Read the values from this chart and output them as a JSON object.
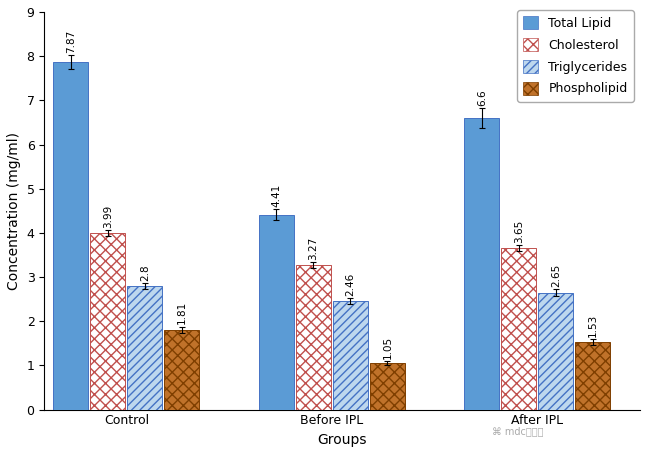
{
  "groups": [
    "Control",
    "Before IPL",
    "After IPL"
  ],
  "series": [
    {
      "label": "Total Lipid",
      "values": [
        7.87,
        4.41,
        6.6
      ],
      "errors": [
        0.15,
        0.12,
        0.22
      ],
      "color": "#5B9BD5",
      "edgecolor": "#4472C4",
      "hatch": ""
    },
    {
      "label": "Cholesterol",
      "values": [
        3.99,
        3.27,
        3.65
      ],
      "errors": [
        0.07,
        0.07,
        0.07
      ],
      "color": "#FFFFFF",
      "edgecolor": "#C0504D",
      "hatch": "xxx"
    },
    {
      "label": "Triglycerides",
      "values": [
        2.8,
        2.46,
        2.65
      ],
      "errors": [
        0.07,
        0.07,
        0.07
      ],
      "color": "#BDD7EE",
      "edgecolor": "#4472C4",
      "hatch": "////"
    },
    {
      "label": "Phospholipid",
      "values": [
        1.81,
        1.05,
        1.53
      ],
      "errors": [
        0.07,
        0.05,
        0.07
      ],
      "color": "#C0722A",
      "edgecolor": "#7F3F00",
      "hatch": "xxx"
    }
  ],
  "ylabel": "Concentration (mg/ml)",
  "xlabel": "Groups",
  "ylim": [
    0,
    9
  ],
  "yticks": [
    0,
    1,
    2,
    3,
    4,
    5,
    6,
    7,
    8,
    9
  ],
  "bar_width": 0.17,
  "background_color": "#FFFFFF",
  "value_label_fontsize": 7.5,
  "axis_label_fontsize": 10,
  "tick_fontsize": 9,
  "legend_fontsize": 9
}
